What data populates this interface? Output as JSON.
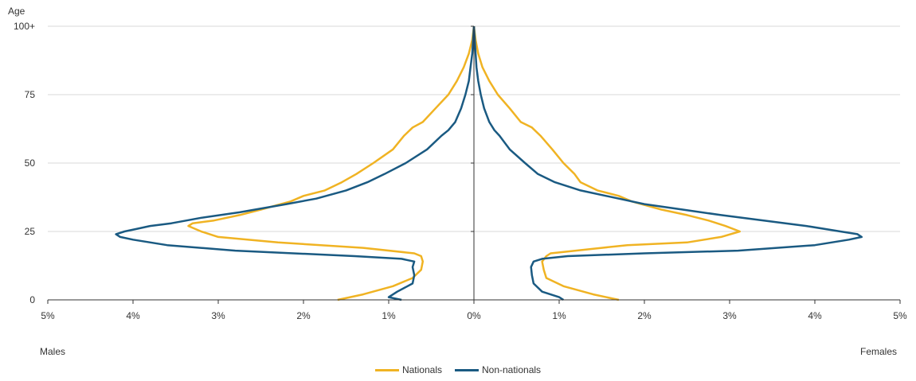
{
  "chart_data": {
    "type": "line",
    "ylabel": "Age",
    "y_ticks": [
      "0",
      "25",
      "50",
      "75",
      "100+"
    ],
    "y_tick_values": [
      0,
      25,
      50,
      75,
      100
    ],
    "x_ticks": [
      "5%",
      "4%",
      "3%",
      "2%",
      "1%",
      "0%",
      "1%",
      "2%",
      "3%",
      "4%",
      "5%"
    ],
    "x_tick_values": [
      -5,
      -4,
      -3,
      -2,
      -1,
      0,
      1,
      2,
      3,
      4,
      5
    ],
    "xlim": [
      -5,
      5
    ],
    "ylim": [
      0,
      100
    ],
    "left_label": "Males",
    "right_label": "Females",
    "grid": "horizontal",
    "legend_position": "bottom",
    "colors": {
      "nationals": "#f0b323",
      "non_nationals": "#1a5a82",
      "axis": "#333333",
      "grid": "#d9d9d9"
    },
    "series": [
      {
        "name": "Nationals",
        "color": "#f0b323",
        "males": {
          "age": [
            0,
            2,
            5,
            8,
            11,
            14,
            16,
            17,
            19,
            21,
            23,
            25,
            27,
            28,
            29,
            31,
            33,
            36,
            38,
            40,
            43,
            46,
            50,
            55,
            60,
            63,
            65,
            70,
            75,
            80,
            85,
            90,
            95,
            100
          ],
          "value": [
            1.6,
            1.3,
            0.95,
            0.72,
            0.62,
            0.6,
            0.62,
            0.7,
            1.3,
            2.3,
            3.0,
            3.2,
            3.35,
            3.3,
            3.05,
            2.75,
            2.5,
            2.15,
            2.0,
            1.75,
            1.55,
            1.38,
            1.18,
            0.95,
            0.82,
            0.72,
            0.6,
            0.45,
            0.3,
            0.2,
            0.12,
            0.06,
            0.02,
            0.0
          ]
        },
        "females": {
          "age": [
            0,
            2,
            5,
            8,
            11,
            14,
            16,
            17,
            19,
            20,
            21,
            23,
            25,
            27,
            29,
            31,
            33,
            36,
            38,
            40,
            43,
            46,
            50,
            55,
            60,
            63,
            65,
            70,
            75,
            80,
            85,
            90,
            95,
            100
          ],
          "value": [
            1.7,
            1.4,
            1.05,
            0.85,
            0.82,
            0.8,
            0.85,
            0.9,
            1.5,
            1.8,
            2.5,
            2.9,
            3.12,
            2.95,
            2.75,
            2.5,
            2.2,
            1.85,
            1.7,
            1.45,
            1.25,
            1.18,
            1.05,
            0.92,
            0.78,
            0.68,
            0.55,
            0.42,
            0.28,
            0.18,
            0.1,
            0.05,
            0.02,
            0.0
          ]
        }
      },
      {
        "name": "Non-nationals",
        "color": "#1a5a82",
        "males": {
          "age": [
            0,
            1,
            3,
            6,
            9,
            12,
            14,
            15,
            16,
            18,
            20,
            22,
            23,
            24,
            25,
            26,
            27,
            28,
            30,
            32,
            35,
            37,
            40,
            43,
            46,
            50,
            55,
            60,
            62,
            65,
            70,
            75,
            80,
            85,
            90,
            95,
            100
          ],
          "value": [
            0.85,
            1.0,
            0.9,
            0.72,
            0.7,
            0.72,
            0.7,
            0.85,
            1.4,
            2.8,
            3.6,
            4.0,
            4.15,
            4.2,
            4.1,
            3.95,
            3.8,
            3.55,
            3.2,
            2.75,
            2.2,
            1.85,
            1.5,
            1.25,
            1.05,
            0.8,
            0.55,
            0.38,
            0.3,
            0.22,
            0.15,
            0.1,
            0.06,
            0.04,
            0.02,
            0.01,
            0.0
          ]
        },
        "females": {
          "age": [
            0,
            1,
            3,
            6,
            9,
            12,
            14,
            15,
            16,
            17,
            18,
            20,
            22,
            23,
            24,
            25,
            27,
            29,
            31,
            33,
            35,
            37,
            40,
            43,
            46,
            50,
            55,
            60,
            62,
            65,
            70,
            75,
            80,
            85,
            90,
            95,
            100
          ],
          "value": [
            1.05,
            1.0,
            0.8,
            0.7,
            0.68,
            0.67,
            0.7,
            0.8,
            1.1,
            2.0,
            3.1,
            4.0,
            4.4,
            4.55,
            4.5,
            4.3,
            3.9,
            3.4,
            2.9,
            2.45,
            2.0,
            1.7,
            1.25,
            0.95,
            0.75,
            0.6,
            0.42,
            0.3,
            0.24,
            0.18,
            0.12,
            0.08,
            0.05,
            0.03,
            0.02,
            0.01,
            0.0
          ]
        }
      }
    ]
  }
}
